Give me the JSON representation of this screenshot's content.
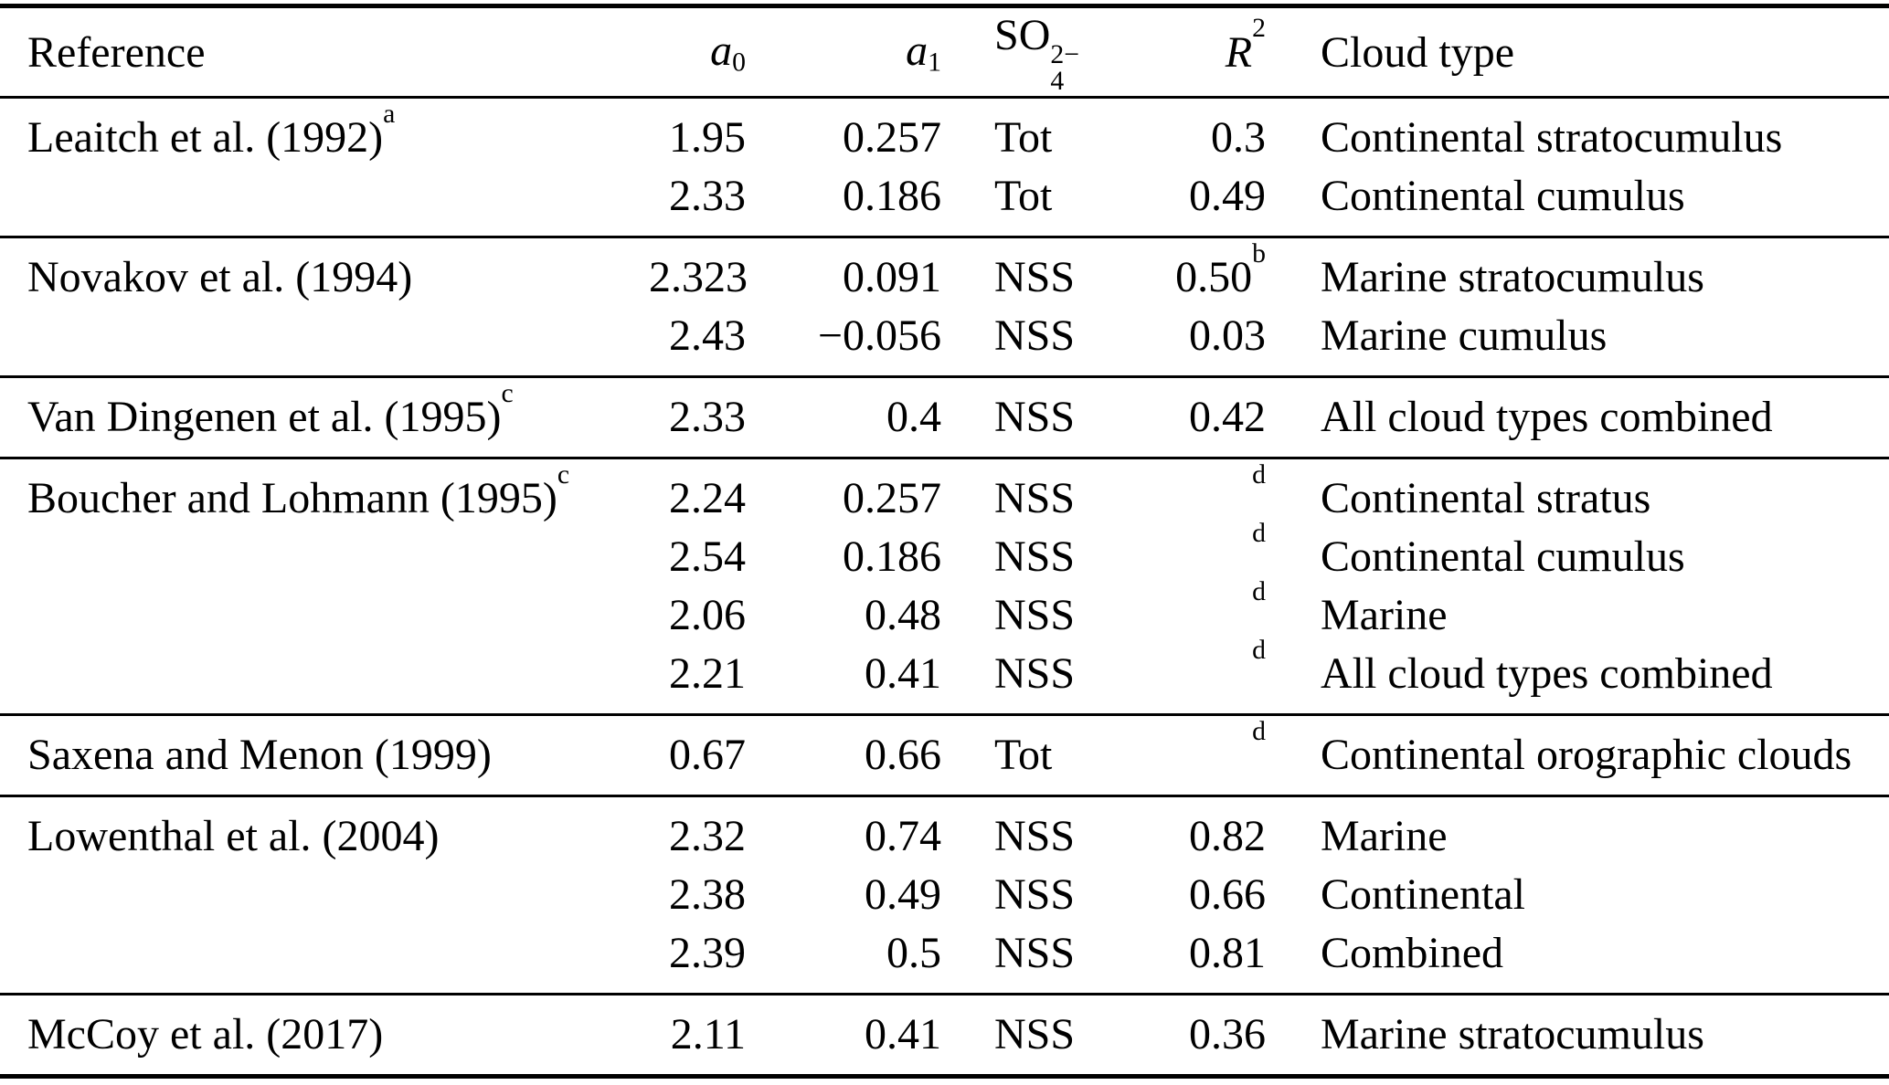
{
  "table": {
    "header": {
      "reference": "Reference",
      "a0": {
        "base": "a",
        "sub": "0"
      },
      "a1": {
        "base": "a",
        "sub": "1"
      },
      "so4": {
        "base": "SO",
        "sub": "4",
        "sup": "2−"
      },
      "r2": {
        "base": "R",
        "sup": "2"
      },
      "cloud_type": "Cloud type"
    },
    "groups": [
      {
        "rows": [
          {
            "ref": "Leaitch et al. (1992)",
            "ref_sup": "a",
            "a0": "1.95",
            "a1": "0.257",
            "so4": "Tot",
            "r2": "0.3",
            "r2_sup": "",
            "cloud": "Continental stratocumulus"
          },
          {
            "ref": "",
            "ref_sup": "",
            "a0": "2.33",
            "a1": "0.186",
            "so4": "Tot",
            "r2": "0.49",
            "r2_sup": "",
            "cloud": "Continental cumulus"
          }
        ]
      },
      {
        "rows": [
          {
            "ref": "Novakov et al. (1994)",
            "ref_sup": "",
            "a0": "2.323",
            "a1": "0.091",
            "so4": "NSS",
            "r2": "0.50",
            "r2_sup": "b",
            "cloud": "Marine stratocumulus"
          },
          {
            "ref": "",
            "ref_sup": "",
            "a0": "2.43",
            "a1": "−0.056",
            "so4": "NSS",
            "r2": "0.03",
            "r2_sup": "",
            "cloud": "Marine cumulus"
          }
        ]
      },
      {
        "rows": [
          {
            "ref": "Van Dingenen et al. (1995)",
            "ref_sup": "c",
            "a0": "2.33",
            "a1": "0.4",
            "so4": "NSS",
            "r2": "0.42",
            "r2_sup": "",
            "cloud": "All cloud types combined"
          }
        ]
      },
      {
        "rows": [
          {
            "ref": "Boucher and Lohmann (1995)",
            "ref_sup": "c",
            "a0": "2.24",
            "a1": "0.257",
            "so4": "NSS",
            "r2": "",
            "r2_sup": "d",
            "cloud": "Continental stratus"
          },
          {
            "ref": "",
            "ref_sup": "",
            "a0": "2.54",
            "a1": "0.186",
            "so4": "NSS",
            "r2": "",
            "r2_sup": "d",
            "cloud": "Continental cumulus"
          },
          {
            "ref": "",
            "ref_sup": "",
            "a0": "2.06",
            "a1": "0.48",
            "so4": "NSS",
            "r2": "",
            "r2_sup": "d",
            "cloud": "Marine"
          },
          {
            "ref": "",
            "ref_sup": "",
            "a0": "2.21",
            "a1": "0.41",
            "so4": "NSS",
            "r2": "",
            "r2_sup": "d",
            "cloud": "All cloud types combined"
          }
        ]
      },
      {
        "rows": [
          {
            "ref": "Saxena and Menon (1999)",
            "ref_sup": "",
            "a0": "0.67",
            "a1": "0.66",
            "so4": "Tot",
            "r2": "",
            "r2_sup": "d",
            "cloud": "Continental orographic clouds"
          }
        ]
      },
      {
        "rows": [
          {
            "ref": "Lowenthal et al. (2004)",
            "ref_sup": "",
            "a0": "2.32",
            "a1": "0.74",
            "so4": "NSS",
            "r2": "0.82",
            "r2_sup": "",
            "cloud": "Marine"
          },
          {
            "ref": "",
            "ref_sup": "",
            "a0": "2.38",
            "a1": "0.49",
            "so4": "NSS",
            "r2": "0.66",
            "r2_sup": "",
            "cloud": "Continental"
          },
          {
            "ref": "",
            "ref_sup": "",
            "a0": "2.39",
            "a1": "0.5",
            "so4": "NSS",
            "r2": "0.81",
            "r2_sup": "",
            "cloud": "Combined"
          }
        ]
      },
      {
        "rows": [
          {
            "ref": "McCoy et al. (2017)",
            "ref_sup": "",
            "a0": "2.11",
            "a1": "0.41",
            "so4": "NSS",
            "r2": "0.36",
            "r2_sup": "",
            "cloud": "Marine stratocumulus"
          }
        ]
      }
    ],
    "colors": {
      "text": "#000000",
      "background": "#ffffff",
      "rule": "#000000"
    }
  }
}
